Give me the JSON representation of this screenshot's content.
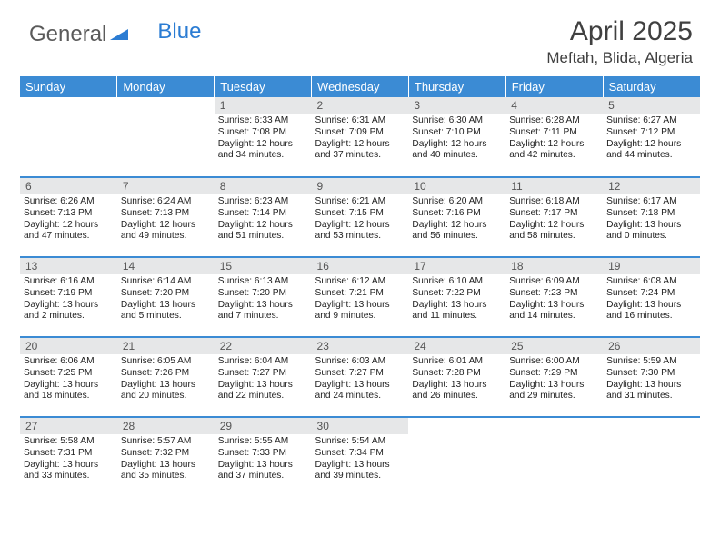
{
  "logo": {
    "text1": "General",
    "text2": "Blue"
  },
  "title": "April 2025",
  "location": "Meftah, Blida, Algeria",
  "colors": {
    "header_bg": "#3b8bd4",
    "header_text": "#ffffff",
    "daynum_bg": "#e6e7e8",
    "logo_gray": "#5a5a5a",
    "logo_blue": "#2b7cd3",
    "border": "#3b8bd4"
  },
  "weekdays": [
    "Sunday",
    "Monday",
    "Tuesday",
    "Wednesday",
    "Thursday",
    "Friday",
    "Saturday"
  ],
  "weeks": [
    [
      null,
      null,
      {
        "n": "1",
        "sr": "Sunrise: 6:33 AM",
        "ss": "Sunset: 7:08 PM",
        "dl": "Daylight: 12 hours and 34 minutes."
      },
      {
        "n": "2",
        "sr": "Sunrise: 6:31 AM",
        "ss": "Sunset: 7:09 PM",
        "dl": "Daylight: 12 hours and 37 minutes."
      },
      {
        "n": "3",
        "sr": "Sunrise: 6:30 AM",
        "ss": "Sunset: 7:10 PM",
        "dl": "Daylight: 12 hours and 40 minutes."
      },
      {
        "n": "4",
        "sr": "Sunrise: 6:28 AM",
        "ss": "Sunset: 7:11 PM",
        "dl": "Daylight: 12 hours and 42 minutes."
      },
      {
        "n": "5",
        "sr": "Sunrise: 6:27 AM",
        "ss": "Sunset: 7:12 PM",
        "dl": "Daylight: 12 hours and 44 minutes."
      }
    ],
    [
      {
        "n": "6",
        "sr": "Sunrise: 6:26 AM",
        "ss": "Sunset: 7:13 PM",
        "dl": "Daylight: 12 hours and 47 minutes."
      },
      {
        "n": "7",
        "sr": "Sunrise: 6:24 AM",
        "ss": "Sunset: 7:13 PM",
        "dl": "Daylight: 12 hours and 49 minutes."
      },
      {
        "n": "8",
        "sr": "Sunrise: 6:23 AM",
        "ss": "Sunset: 7:14 PM",
        "dl": "Daylight: 12 hours and 51 minutes."
      },
      {
        "n": "9",
        "sr": "Sunrise: 6:21 AM",
        "ss": "Sunset: 7:15 PM",
        "dl": "Daylight: 12 hours and 53 minutes."
      },
      {
        "n": "10",
        "sr": "Sunrise: 6:20 AM",
        "ss": "Sunset: 7:16 PM",
        "dl": "Daylight: 12 hours and 56 minutes."
      },
      {
        "n": "11",
        "sr": "Sunrise: 6:18 AM",
        "ss": "Sunset: 7:17 PM",
        "dl": "Daylight: 12 hours and 58 minutes."
      },
      {
        "n": "12",
        "sr": "Sunrise: 6:17 AM",
        "ss": "Sunset: 7:18 PM",
        "dl": "Daylight: 13 hours and 0 minutes."
      }
    ],
    [
      {
        "n": "13",
        "sr": "Sunrise: 6:16 AM",
        "ss": "Sunset: 7:19 PM",
        "dl": "Daylight: 13 hours and 2 minutes."
      },
      {
        "n": "14",
        "sr": "Sunrise: 6:14 AM",
        "ss": "Sunset: 7:20 PM",
        "dl": "Daylight: 13 hours and 5 minutes."
      },
      {
        "n": "15",
        "sr": "Sunrise: 6:13 AM",
        "ss": "Sunset: 7:20 PM",
        "dl": "Daylight: 13 hours and 7 minutes."
      },
      {
        "n": "16",
        "sr": "Sunrise: 6:12 AM",
        "ss": "Sunset: 7:21 PM",
        "dl": "Daylight: 13 hours and 9 minutes."
      },
      {
        "n": "17",
        "sr": "Sunrise: 6:10 AM",
        "ss": "Sunset: 7:22 PM",
        "dl": "Daylight: 13 hours and 11 minutes."
      },
      {
        "n": "18",
        "sr": "Sunrise: 6:09 AM",
        "ss": "Sunset: 7:23 PM",
        "dl": "Daylight: 13 hours and 14 minutes."
      },
      {
        "n": "19",
        "sr": "Sunrise: 6:08 AM",
        "ss": "Sunset: 7:24 PM",
        "dl": "Daylight: 13 hours and 16 minutes."
      }
    ],
    [
      {
        "n": "20",
        "sr": "Sunrise: 6:06 AM",
        "ss": "Sunset: 7:25 PM",
        "dl": "Daylight: 13 hours and 18 minutes."
      },
      {
        "n": "21",
        "sr": "Sunrise: 6:05 AM",
        "ss": "Sunset: 7:26 PM",
        "dl": "Daylight: 13 hours and 20 minutes."
      },
      {
        "n": "22",
        "sr": "Sunrise: 6:04 AM",
        "ss": "Sunset: 7:27 PM",
        "dl": "Daylight: 13 hours and 22 minutes."
      },
      {
        "n": "23",
        "sr": "Sunrise: 6:03 AM",
        "ss": "Sunset: 7:27 PM",
        "dl": "Daylight: 13 hours and 24 minutes."
      },
      {
        "n": "24",
        "sr": "Sunrise: 6:01 AM",
        "ss": "Sunset: 7:28 PM",
        "dl": "Daylight: 13 hours and 26 minutes."
      },
      {
        "n": "25",
        "sr": "Sunrise: 6:00 AM",
        "ss": "Sunset: 7:29 PM",
        "dl": "Daylight: 13 hours and 29 minutes."
      },
      {
        "n": "26",
        "sr": "Sunrise: 5:59 AM",
        "ss": "Sunset: 7:30 PM",
        "dl": "Daylight: 13 hours and 31 minutes."
      }
    ],
    [
      {
        "n": "27",
        "sr": "Sunrise: 5:58 AM",
        "ss": "Sunset: 7:31 PM",
        "dl": "Daylight: 13 hours and 33 minutes."
      },
      {
        "n": "28",
        "sr": "Sunrise: 5:57 AM",
        "ss": "Sunset: 7:32 PM",
        "dl": "Daylight: 13 hours and 35 minutes."
      },
      {
        "n": "29",
        "sr": "Sunrise: 5:55 AM",
        "ss": "Sunset: 7:33 PM",
        "dl": "Daylight: 13 hours and 37 minutes."
      },
      {
        "n": "30",
        "sr": "Sunrise: 5:54 AM",
        "ss": "Sunset: 7:34 PM",
        "dl": "Daylight: 13 hours and 39 minutes."
      },
      null,
      null,
      null
    ]
  ]
}
